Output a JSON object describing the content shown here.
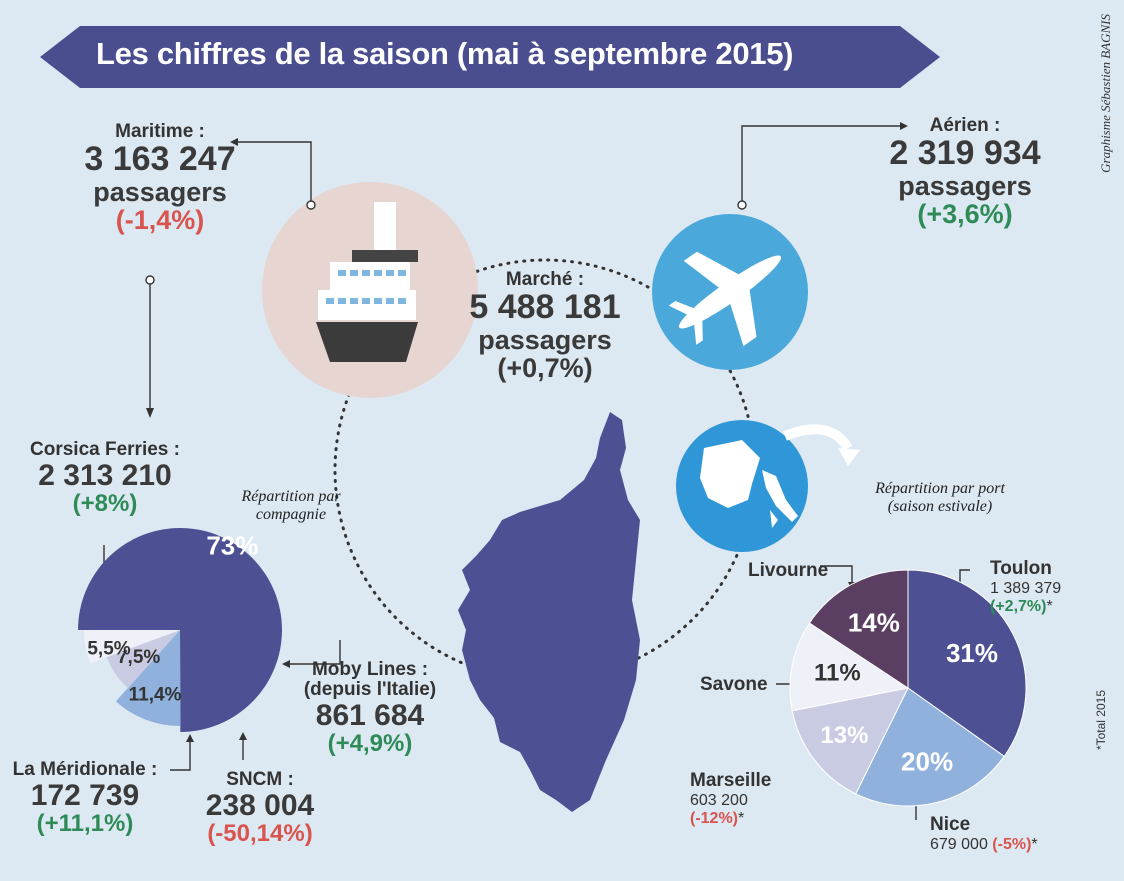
{
  "title": "Les chiffres de la saison (mai à septembre 2015)",
  "credit": "Graphisme Sébastien BAGNIS",
  "total_note": "*Total 2015",
  "maritime": {
    "label": "Maritime :",
    "value": "3 163 247",
    "unit": "passagers",
    "change": "(-1,4%)"
  },
  "aerien": {
    "label": "Aérien :",
    "value": "2 319 934",
    "unit": "passagers",
    "change": "(+3,6%)"
  },
  "marche": {
    "label": "Marché :",
    "value": "5 488 181",
    "unit": "passagers",
    "change": "(+0,7%)"
  },
  "corsica": {
    "label": "Corsica Ferries :",
    "value": "2 313 210",
    "change": "(+8%)"
  },
  "moby": {
    "label1": "Moby Lines :",
    "label2": "(depuis l'Italie)",
    "value": "861 684",
    "change": "(+4,9%)"
  },
  "meridionale": {
    "label": "La Méridionale :",
    "value": "172 739",
    "change": "(+11,1%)"
  },
  "sncm": {
    "label": "SNCM :",
    "value": "238 004",
    "change": "(-50,14%)"
  },
  "repartition_compagnie": "Répartition par compagnie",
  "repartition_port1": "Répartition par port",
  "repartition_port2": "(saison estivale)",
  "ports": {
    "livourne": {
      "label": "Livourne"
    },
    "toulon": {
      "label": "Toulon",
      "value": "1 389 379",
      "change": "(+2,7%)",
      "star": "*"
    },
    "savone": {
      "label": "Savone"
    },
    "marseille": {
      "label": "Marseille",
      "value": "603 200",
      "change": "(-12%)",
      "star": "*"
    },
    "nice": {
      "label": "Nice",
      "value": "679 000",
      "change": "(-5%)",
      "star": "*"
    }
  },
  "colors": {
    "dark_blue": "#4d5193",
    "light_blue": "#8fb1dc",
    "plum": "#5a3f63",
    "pale": "#eef1f7",
    "lavender": "#c9cbe3",
    "red": "#d9534f",
    "green": "#2e8b57"
  },
  "chart_data": [
    {
      "type": "pie",
      "title": "Répartition par compagnie",
      "categories": [
        "Corsica Ferries",
        "Moby Lines",
        "SNCM",
        "La Méridionale"
      ],
      "labels": [
        "73%",
        "11,4%",
        "7,5%",
        "5,5%"
      ],
      "values": [
        73,
        11.4,
        7.5,
        5.5
      ]
    },
    {
      "type": "pie",
      "title": "Répartition par port",
      "categories": [
        "Toulon",
        "Nice",
        "Marseille",
        "Savone",
        "Livourne"
      ],
      "labels": [
        "31%",
        "20%",
        "13%",
        "11%",
        "14%"
      ],
      "values": [
        31,
        20,
        13,
        11,
        14
      ]
    }
  ]
}
